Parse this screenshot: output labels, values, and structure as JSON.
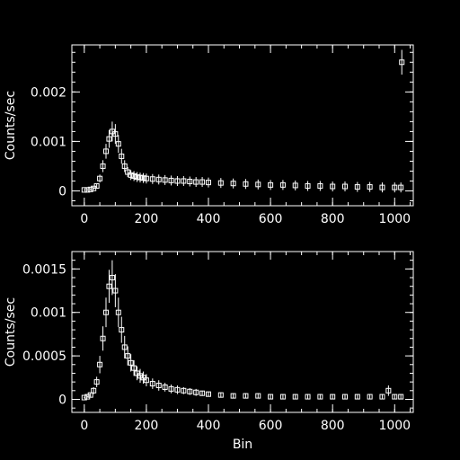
{
  "colors": {
    "background": "#000000",
    "foreground": "#ffffff"
  },
  "chart_data": [
    {
      "type": "scatter",
      "marker": "open-square-with-error-bars",
      "title": "",
      "xlabel": "",
      "ylabel": "Counts/sec",
      "xlim": [
        -40,
        1060
      ],
      "ylim": [
        -0.0003,
        0.00295
      ],
      "xticks": [
        0,
        200,
        400,
        600,
        800,
        1000
      ],
      "xtick_labels": [
        "0",
        "200",
        "400",
        "600",
        "800",
        "1000"
      ],
      "yticks": [
        0,
        0.001,
        0.002
      ],
      "ytick_labels": [
        "0",
        "0.001",
        "0.002"
      ],
      "x_minor_step": 50,
      "y_minor_step": 0.0002,
      "grid": false,
      "series": [
        {
          "points": [
            [
              0,
              2e-05
            ],
            [
              10,
              2e-05
            ],
            [
              20,
              3e-05
            ],
            [
              30,
              5e-05
            ],
            [
              40,
              0.0001
            ],
            [
              50,
              0.00025
            ],
            [
              60,
              0.0005
            ],
            [
              70,
              0.0008
            ],
            [
              80,
              0.00105
            ],
            [
              90,
              0.0012
            ],
            [
              100,
              0.00115
            ],
            [
              110,
              0.00095
            ],
            [
              120,
              0.0007
            ],
            [
              130,
              0.0005
            ],
            [
              140,
              0.00038
            ],
            [
              150,
              0.00032
            ],
            [
              160,
              0.0003
            ],
            [
              170,
              0.00028
            ],
            [
              180,
              0.00027
            ],
            [
              190,
              0.00026
            ],
            [
              200,
              0.00025
            ],
            [
              220,
              0.00024
            ],
            [
              240,
              0.00023
            ],
            [
              260,
              0.00022
            ],
            [
              280,
              0.00021
            ],
            [
              300,
              0.0002
            ],
            [
              320,
              0.0002
            ],
            [
              340,
              0.00019
            ],
            [
              360,
              0.00018
            ],
            [
              380,
              0.00018
            ],
            [
              400,
              0.00017
            ],
            [
              440,
              0.00016
            ],
            [
              480,
              0.00015
            ],
            [
              520,
              0.00014
            ],
            [
              560,
              0.00013
            ],
            [
              600,
              0.00012
            ],
            [
              640,
              0.00012
            ],
            [
              680,
              0.00011
            ],
            [
              720,
              0.0001
            ],
            [
              760,
              0.0001
            ],
            [
              800,
              9e-05
            ],
            [
              840,
              9e-05
            ],
            [
              880,
              8e-05
            ],
            [
              920,
              8e-05
            ],
            [
              960,
              7e-05
            ],
            [
              1000,
              7e-05
            ],
            [
              1020,
              7e-05
            ],
            [
              1023,
              0.0026
            ]
          ],
          "errors": [
            1e-05,
            1e-05,
            1e-05,
            2e-05,
            4e-05,
            8e-05,
            0.00012,
            0.00015,
            0.00018,
            0.0002,
            0.0002,
            0.00018,
            0.00015,
            0.00012,
            0.0001,
            0.0001,
            0.0001,
            0.0001,
            0.0001,
            0.0001,
            0.0001,
            0.0001,
            0.0001,
            0.0001,
            0.0001,
            0.0001,
            0.0001,
            0.0001,
            0.0001,
            0.0001,
            0.0001,
            0.0001,
            0.0001,
            0.0001,
            0.0001,
            0.0001,
            0.0001,
            0.0001,
            0.0001,
            0.0001,
            0.0001,
            0.0001,
            0.0001,
            0.0001,
            0.0001,
            0.0001,
            0.0001,
            0.00025
          ]
        }
      ]
    },
    {
      "type": "scatter",
      "marker": "open-square-with-error-bars",
      "title": "",
      "xlabel": "Bin",
      "ylabel": "Counts/sec",
      "xlim": [
        -40,
        1060
      ],
      "ylim": [
        -0.00015,
        0.0017
      ],
      "xticks": [
        0,
        200,
        400,
        600,
        800,
        1000
      ],
      "xtick_labels": [
        "0",
        "200",
        "400",
        "600",
        "800",
        "1000"
      ],
      "yticks": [
        0,
        0.0005,
        0.001,
        0.0015
      ],
      "ytick_labels": [
        "0",
        "0.0005",
        "0.001",
        "0.0015"
      ],
      "x_minor_step": 50,
      "y_minor_step": 0.0001,
      "grid": false,
      "series": [
        {
          "points": [
            [
              0,
              2e-05
            ],
            [
              10,
              3e-05
            ],
            [
              20,
              5e-05
            ],
            [
              30,
              0.0001
            ],
            [
              40,
              0.0002
            ],
            [
              50,
              0.0004
            ],
            [
              60,
              0.0007
            ],
            [
              70,
              0.001
            ],
            [
              80,
              0.0013
            ],
            [
              90,
              0.0014
            ],
            [
              100,
              0.00125
            ],
            [
              110,
              0.001
            ],
            [
              120,
              0.0008
            ],
            [
              130,
              0.0006
            ],
            [
              140,
              0.0005
            ],
            [
              150,
              0.00042
            ],
            [
              160,
              0.00036
            ],
            [
              170,
              0.0003
            ],
            [
              180,
              0.00027
            ],
            [
              190,
              0.00025
            ],
            [
              200,
              0.00022
            ],
            [
              220,
              0.00018
            ],
            [
              240,
              0.00016
            ],
            [
              260,
              0.00014
            ],
            [
              280,
              0.00012
            ],
            [
              300,
              0.00011
            ],
            [
              320,
              0.0001
            ],
            [
              340,
              9e-05
            ],
            [
              360,
              8e-05
            ],
            [
              380,
              7e-05
            ],
            [
              400,
              6e-05
            ],
            [
              440,
              5e-05
            ],
            [
              480,
              4e-05
            ],
            [
              520,
              4e-05
            ],
            [
              560,
              4e-05
            ],
            [
              600,
              3e-05
            ],
            [
              640,
              3e-05
            ],
            [
              680,
              3e-05
            ],
            [
              720,
              3e-05
            ],
            [
              760,
              3e-05
            ],
            [
              800,
              3e-05
            ],
            [
              840,
              3e-05
            ],
            [
              880,
              3e-05
            ],
            [
              920,
              3e-05
            ],
            [
              960,
              3e-05
            ],
            [
              980,
              0.0001
            ],
            [
              1000,
              3e-05
            ],
            [
              1020,
              3e-05
            ]
          ],
          "errors": [
            1e-05,
            1e-05,
            2e-05,
            4e-05,
            6e-05,
            0.0001,
            0.00014,
            0.00017,
            0.00019,
            0.0002,
            0.00019,
            0.00017,
            0.00015,
            0.00013,
            0.00011,
            0.0001,
            9e-05,
            8e-05,
            8e-05,
            7e-05,
            7e-05,
            6e-05,
            6e-05,
            5e-05,
            5e-05,
            5e-05,
            4e-05,
            4e-05,
            4e-05,
            3e-05,
            3e-05,
            3e-05,
            3e-05,
            3e-05,
            3e-05,
            3e-05,
            3e-05,
            3e-05,
            3e-05,
            3e-05,
            3e-05,
            3e-05,
            3e-05,
            3e-05,
            3e-05,
            6e-05,
            3e-05,
            3e-05
          ]
        }
      ]
    }
  ]
}
